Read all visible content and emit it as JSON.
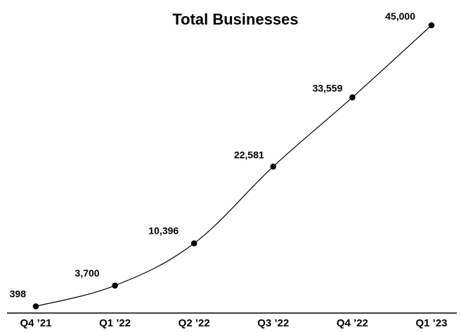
{
  "chart_data": {
    "type": "line",
    "title": "Total Businesses",
    "categories": [
      "Q4 ’21",
      "Q1 ’22",
      "Q2 ’22",
      "Q3 ’22",
      "Q4 ’22",
      "Q1 ’23"
    ],
    "series": [
      {
        "values": [
          398,
          3700,
          10396,
          22581,
          33559,
          45000
        ],
        "labels": [
          "398",
          "3,700",
          "10,396",
          "22,581",
          "33,559",
          "45,000"
        ]
      }
    ],
    "xlabel": "",
    "ylabel": "",
    "ylim": [
      0,
      45000
    ],
    "grid": false,
    "legend": "none",
    "colors": {
      "line": "#000000",
      "marker": "#000000",
      "text": "#000000",
      "axis": "#000000",
      "background": "#ffffff"
    }
  }
}
